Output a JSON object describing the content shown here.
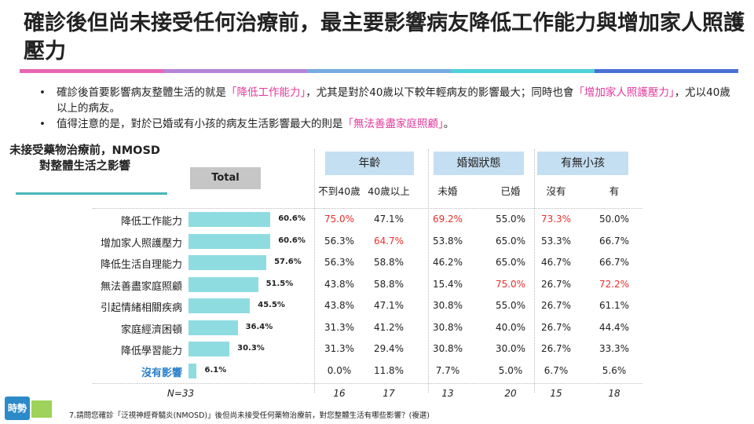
{
  "title": "確診後但尚未接受任何治療前，最主要影響病友降低工作能力與增加家人照護壓力",
  "rainbow": [
    "#e766b4",
    "#b584d6",
    "#77abe0",
    "#4fd1d8",
    "#4b6fd6"
  ],
  "bullets": [
    {
      "parts": [
        {
          "t": "確診後首要影響病友整體生活的就是"
        },
        {
          "t": "「降低工作能力」",
          "hl": true
        },
        {
          "t": "，尤其是對於40歲以下較年輕病友的影響最大；同時也會"
        },
        {
          "t": "「增加家人照護壓力」",
          "hl": true
        },
        {
          "t": "，尤以40歲以上的病友。"
        }
      ]
    },
    {
      "parts": [
        {
          "t": "值得注意的是，對於已婚或有小孩的病友生活影響最大的則是"
        },
        {
          "t": "「無法善盡家庭照顧」",
          "hl": true
        },
        {
          "t": "。"
        }
      ]
    }
  ],
  "left_label": "未接受藥物治療前，NMOSD對整體生活之影響",
  "total_label": "Total",
  "groups": [
    "年齡",
    "婚姻狀態",
    "有無小孩"
  ],
  "subgroups": [
    "不到40歲",
    "40歲以上",
    "未婚",
    "已婚",
    "沒有",
    "有"
  ],
  "chart_data": {
    "type": "bar",
    "orientation": "horizontal",
    "categories": [
      "降低工作能力",
      "增加家人照護壓力",
      "降低生活自理能力",
      "無法善盡家庭照顧",
      "引起情緒相關疾病",
      "家庭經濟困頓",
      "降低學習能力",
      "沒有影響"
    ],
    "values": [
      60.6,
      60.6,
      57.6,
      51.5,
      45.5,
      36.4,
      30.3,
      6.1
    ],
    "value_labels": [
      "60.6%",
      "60.6%",
      "57.6%",
      "51.5%",
      "45.5%",
      "36.4%",
      "30.3%",
      "6.1%"
    ],
    "xlim": [
      0,
      100
    ],
    "table": [
      [
        "75.0%",
        "47.1%",
        "69.2%",
        "55.0%",
        "73.3%",
        "50.0%"
      ],
      [
        "56.3%",
        "64.7%",
        "53.8%",
        "65.0%",
        "53.3%",
        "66.7%"
      ],
      [
        "56.3%",
        "58.8%",
        "46.2%",
        "65.0%",
        "46.7%",
        "66.7%"
      ],
      [
        "43.8%",
        "58.8%",
        "15.4%",
        "75.0%",
        "26.7%",
        "72.2%"
      ],
      [
        "43.8%",
        "47.1%",
        "30.8%",
        "55.0%",
        "26.7%",
        "61.1%"
      ],
      [
        "31.3%",
        "41.2%",
        "30.8%",
        "40.0%",
        "26.7%",
        "44.4%"
      ],
      [
        "31.3%",
        "29.4%",
        "30.8%",
        "30.0%",
        "26.7%",
        "33.3%"
      ],
      [
        "0.0%",
        "11.8%",
        "7.7%",
        "5.0%",
        "6.7%",
        "5.6%"
      ]
    ],
    "highlight": [
      [
        0,
        0
      ],
      [
        0,
        2
      ],
      [
        0,
        4
      ],
      [
        1,
        1
      ],
      [
        3,
        3
      ],
      [
        3,
        5
      ]
    ],
    "n_labels": [
      "N=33",
      "16",
      "17",
      "13",
      "20",
      "15",
      "18"
    ]
  },
  "footnote": "7.請問您確診「泛視神經脊髓炎(NMOSD)」後但尚未接受任何藥物治療前，對您整體生活有哪些影響？(複選)",
  "logo": "時勢"
}
